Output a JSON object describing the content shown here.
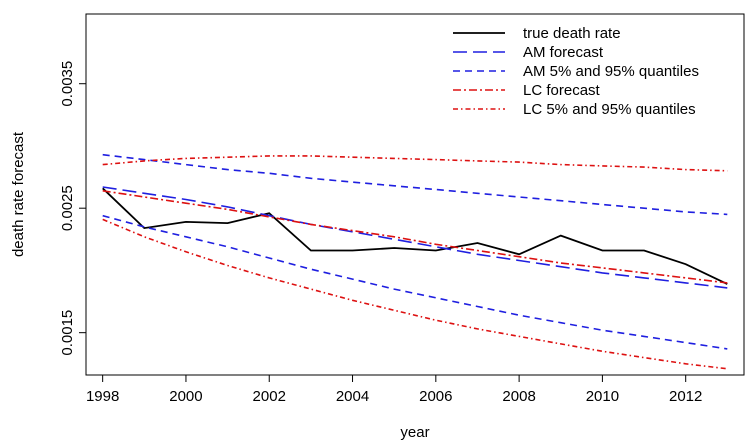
{
  "chart_data": {
    "type": "line",
    "title": "",
    "xlabel": "year",
    "ylabel": "death rate forecast",
    "xlim": [
      1997.6,
      2013.4
    ],
    "ylim": [
      0.00116,
      0.00406
    ],
    "x_ticks": [
      1998,
      2000,
      2002,
      2004,
      2006,
      2008,
      2010,
      2012
    ],
    "y_ticks": [
      0.0015,
      0.0025,
      0.0035
    ],
    "y_tick_labels": [
      "0.0015",
      "0.0025",
      "0.0035"
    ],
    "grid": false,
    "legend_position": "top-right",
    "x": [
      1998,
      1999,
      2000,
      2001,
      2002,
      2003,
      2004,
      2005,
      2006,
      2007,
      2008,
      2009,
      2010,
      2011,
      2012,
      2013
    ],
    "series": [
      {
        "name": "true death rate",
        "color": "#000000",
        "dash": "solid",
        "values": [
          0.00266,
          0.00234,
          0.00239,
          0.00238,
          0.00246,
          0.00216,
          0.00216,
          0.00218,
          0.00216,
          0.00222,
          0.00213,
          0.00228,
          0.00216,
          0.00216,
          0.00205,
          0.00189
        ]
      },
      {
        "name": "AM forecast",
        "color": "#1f1fe0",
        "dash": "longdash",
        "values": [
          0.00267,
          0.00262,
          0.00257,
          0.00251,
          0.00244,
          0.00237,
          0.00231,
          0.00225,
          0.00219,
          0.00213,
          0.00208,
          0.00203,
          0.00198,
          0.00194,
          0.0019,
          0.00186
        ]
      },
      {
        "name": "AM 5% and 95% quantiles",
        "color": "#1f1fe0",
        "dash": "dashed",
        "values": [
          0.00293,
          0.00289,
          0.00285,
          0.00281,
          0.00278,
          0.00274,
          0.00271,
          0.00268,
          0.00265,
          0.00262,
          0.00259,
          0.00256,
          0.00253,
          0.0025,
          0.00247,
          0.00245
        ]
      },
      {
        "name": "",
        "color": "#1f1fe0",
        "dash": "dashed",
        "values": [
          0.00244,
          0.00235,
          0.00227,
          0.00219,
          0.0021,
          0.00201,
          0.00193,
          0.00185,
          0.00178,
          0.00171,
          0.00164,
          0.00158,
          0.00152,
          0.00147,
          0.00142,
          0.00137
        ]
      },
      {
        "name": "LC forecast",
        "color": "#dd1111",
        "dash": "dotdash",
        "values": [
          0.00264,
          0.00259,
          0.00254,
          0.00249,
          0.00243,
          0.00237,
          0.00232,
          0.00227,
          0.00221,
          0.00216,
          0.00211,
          0.00206,
          0.00202,
          0.00198,
          0.00194,
          0.0019
        ]
      },
      {
        "name": "LC 5% and 95% quantiles",
        "color": "#dd1111",
        "dash": "twodash",
        "values": [
          0.00285,
          0.00288,
          0.0029,
          0.00291,
          0.00292,
          0.00292,
          0.00291,
          0.0029,
          0.00289,
          0.00288,
          0.00287,
          0.00285,
          0.00284,
          0.00283,
          0.00281,
          0.0028
        ]
      },
      {
        "name": "",
        "color": "#dd1111",
        "dash": "twodash",
        "values": [
          0.00241,
          0.00227,
          0.00215,
          0.00204,
          0.00194,
          0.00185,
          0.00176,
          0.00168,
          0.0016,
          0.00153,
          0.00147,
          0.00141,
          0.00135,
          0.0013,
          0.00125,
          0.00121
        ]
      }
    ],
    "legend": [
      {
        "label": "true death rate",
        "color": "#000000",
        "dash": "solid"
      },
      {
        "label": "AM forecast",
        "color": "#1f1fe0",
        "dash": "longdash"
      },
      {
        "label": "AM 5% and 95% quantiles",
        "color": "#1f1fe0",
        "dash": "dashed"
      },
      {
        "label": "LC forecast",
        "color": "#dd1111",
        "dash": "dotdash"
      },
      {
        "label": "LC 5% and 95% quantiles",
        "color": "#dd1111",
        "dash": "twodash"
      }
    ]
  }
}
